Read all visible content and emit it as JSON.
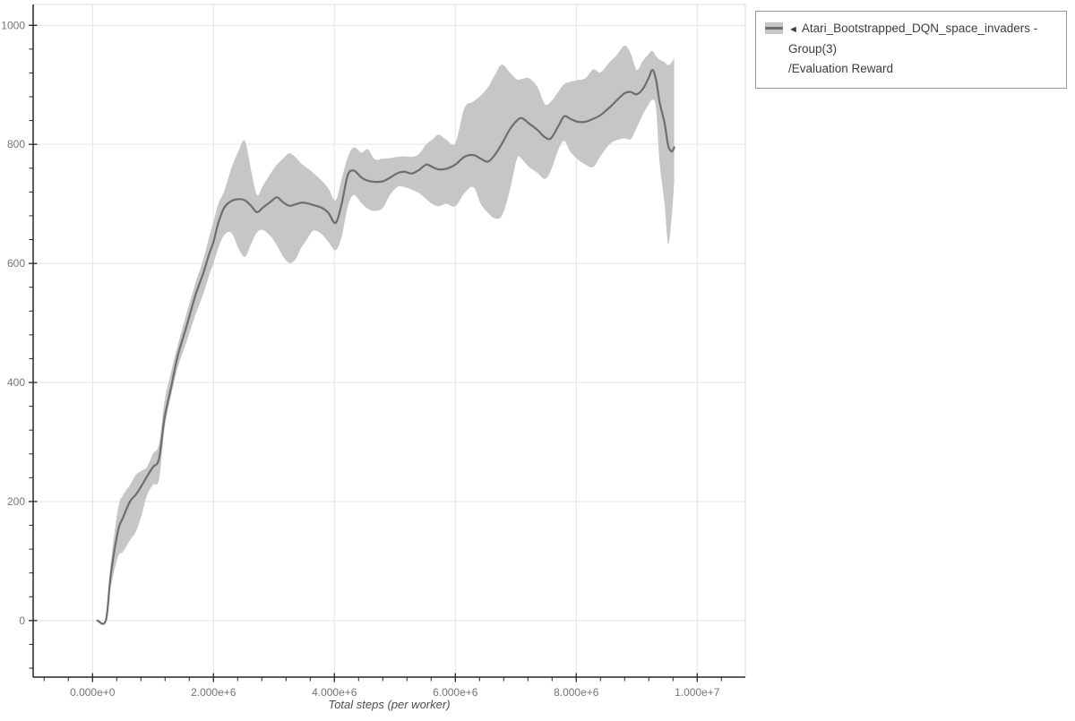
{
  "colors": {
    "background": "#ffffff",
    "grid": "#e3e3e3",
    "plot_border": "#dedede",
    "axis": "#262626",
    "tick_label": "#757575",
    "axis_title": "#4d4d4d",
    "line": "#6e6e6e",
    "band": "#c6c6c6",
    "legend_border": "#969696",
    "legend_text": "#3d3d3d"
  },
  "legend": {
    "collapse_marker": "◄",
    "series_name": "Atari_Bootstrapped_DQN_space_invaders - Group(3)",
    "metric_name": "/Evaluation Reward"
  },
  "chart_data": {
    "type": "line",
    "title": "",
    "xlabel": "Total steps (per worker)",
    "ylabel": "",
    "grid": true,
    "legend_position": "top-right",
    "xlim": [
      -982000,
      10796000
    ],
    "ylim": [
      -95,
      1035
    ],
    "xticks": {
      "minor_step": 400000,
      "major": [
        {
          "v": 0,
          "label": "0.000e+0"
        },
        {
          "v": 2000000,
          "label": "2.000e+6"
        },
        {
          "v": 4000000,
          "label": "4.000e+6"
        },
        {
          "v": 6000000,
          "label": "6.000e+6"
        },
        {
          "v": 8000000,
          "label": "8.000e+6"
        },
        {
          "v": 10000000,
          "label": "1.000e+7"
        }
      ]
    },
    "yticks": {
      "minor_step": 40,
      "major": [
        {
          "v": 0,
          "label": "0"
        },
        {
          "v": 200,
          "label": "200"
        },
        {
          "v": 400,
          "label": "400"
        },
        {
          "v": 600,
          "label": "600"
        },
        {
          "v": 800,
          "label": "800"
        },
        {
          "v": 1000,
          "label": "1000"
        }
      ]
    },
    "series": [
      {
        "name": "Atari_Bootstrapped_DQN_space_invaders - Group(3)/Evaluation Reward",
        "line_color": "#6e6e6e",
        "band_color": "#c6c6c6",
        "points_format": [
          "step",
          "band_low",
          "mean",
          "band_high"
        ],
        "points": [
          [
            80000,
            0,
            0,
            0
          ],
          [
            220000,
            0,
            0,
            4
          ],
          [
            300000,
            55,
            75,
            95
          ],
          [
            420000,
            107,
            150,
            187
          ],
          [
            500000,
            115,
            172,
            210
          ],
          [
            620000,
            135,
            200,
            228
          ],
          [
            720000,
            150,
            212,
            245
          ],
          [
            820000,
            180,
            228,
            252
          ],
          [
            900000,
            210,
            242,
            258
          ],
          [
            1000000,
            228,
            258,
            280
          ],
          [
            1100000,
            237,
            272,
            297
          ],
          [
            1190000,
            322,
            340,
            368
          ],
          [
            1300000,
            378,
            392,
            418
          ],
          [
            1410000,
            425,
            445,
            463
          ],
          [
            1560000,
            470,
            496,
            518
          ],
          [
            1700000,
            513,
            546,
            566
          ],
          [
            1830000,
            548,
            583,
            606
          ],
          [
            1930000,
            580,
            616,
            645
          ],
          [
            2000000,
            600,
            636,
            670
          ],
          [
            2080000,
            626,
            668,
            700
          ],
          [
            2180000,
            648,
            694,
            722
          ],
          [
            2300000,
            651,
            705,
            761
          ],
          [
            2420000,
            624,
            708,
            790
          ],
          [
            2520000,
            611,
            706,
            806
          ],
          [
            2620000,
            632,
            697,
            758
          ],
          [
            2720000,
            652,
            686,
            715
          ],
          [
            2820000,
            656,
            694,
            731
          ],
          [
            2950000,
            645,
            704,
            752
          ],
          [
            3050000,
            630,
            711,
            766
          ],
          [
            3150000,
            612,
            703,
            776
          ],
          [
            3250000,
            601,
            697,
            785
          ],
          [
            3350000,
            606,
            699,
            779
          ],
          [
            3450000,
            626,
            702,
            768
          ],
          [
            3550000,
            641,
            701,
            760
          ],
          [
            3650000,
            655,
            698,
            752
          ],
          [
            3780000,
            650,
            694,
            740
          ],
          [
            3900000,
            636,
            685,
            726
          ],
          [
            4020000,
            622,
            668,
            706
          ],
          [
            4120000,
            645,
            700,
            742
          ],
          [
            4220000,
            695,
            748,
            778
          ],
          [
            4320000,
            715,
            756,
            795
          ],
          [
            4450000,
            701,
            744,
            786
          ],
          [
            4550000,
            692,
            739,
            792
          ],
          [
            4670000,
            688,
            737,
            775
          ],
          [
            4800000,
            693,
            738,
            776
          ],
          [
            4920000,
            715,
            744,
            777
          ],
          [
            5050000,
            729,
            752,
            779
          ],
          [
            5160000,
            728,
            754,
            780
          ],
          [
            5280000,
            724,
            751,
            779
          ],
          [
            5400000,
            718,
            757,
            784
          ],
          [
            5520000,
            708,
            766,
            800
          ],
          [
            5620000,
            700,
            762,
            808
          ],
          [
            5720000,
            696,
            758,
            816
          ],
          [
            5850000,
            700,
            759,
            808
          ],
          [
            6000000,
            696,
            766,
            802
          ],
          [
            6150000,
            718,
            779,
            861
          ],
          [
            6300000,
            728,
            782,
            872
          ],
          [
            6420000,
            700,
            776,
            882
          ],
          [
            6540000,
            685,
            771,
            896
          ],
          [
            6650000,
            676,
            782,
            916
          ],
          [
            6770000,
            680,
            801,
            934
          ],
          [
            6900000,
            722,
            825,
            921
          ],
          [
            7020000,
            776,
            840,
            909
          ],
          [
            7100000,
            775,
            844,
            910
          ],
          [
            7220000,
            762,
            835,
            911
          ],
          [
            7360000,
            752,
            824,
            896
          ],
          [
            7480000,
            742,
            812,
            868
          ],
          [
            7580000,
            756,
            810,
            872
          ],
          [
            7700000,
            790,
            830,
            888
          ],
          [
            7800000,
            806,
            847,
            901
          ],
          [
            7900000,
            788,
            843,
            905
          ],
          [
            8020000,
            775,
            838,
            908
          ],
          [
            8150000,
            766,
            838,
            911
          ],
          [
            8280000,
            762,
            843,
            926
          ],
          [
            8400000,
            780,
            849,
            921
          ],
          [
            8550000,
            800,
            862,
            938
          ],
          [
            8670000,
            807,
            874,
            950
          ],
          [
            8800000,
            810,
            886,
            966
          ],
          [
            8900000,
            809,
            888,
            953
          ],
          [
            9000000,
            828,
            884,
            925
          ],
          [
            9100000,
            850,
            893,
            940
          ],
          [
            9190000,
            866,
            910,
            951
          ],
          [
            9260000,
            875,
            925,
            957
          ],
          [
            9320000,
            860,
            908,
            948
          ],
          [
            9380000,
            768,
            870,
            942
          ],
          [
            9460000,
            700,
            836,
            938
          ],
          [
            9520000,
            633,
            798,
            933
          ],
          [
            9580000,
            680,
            788,
            938
          ],
          [
            9620000,
            738,
            795,
            945
          ]
        ]
      }
    ]
  }
}
